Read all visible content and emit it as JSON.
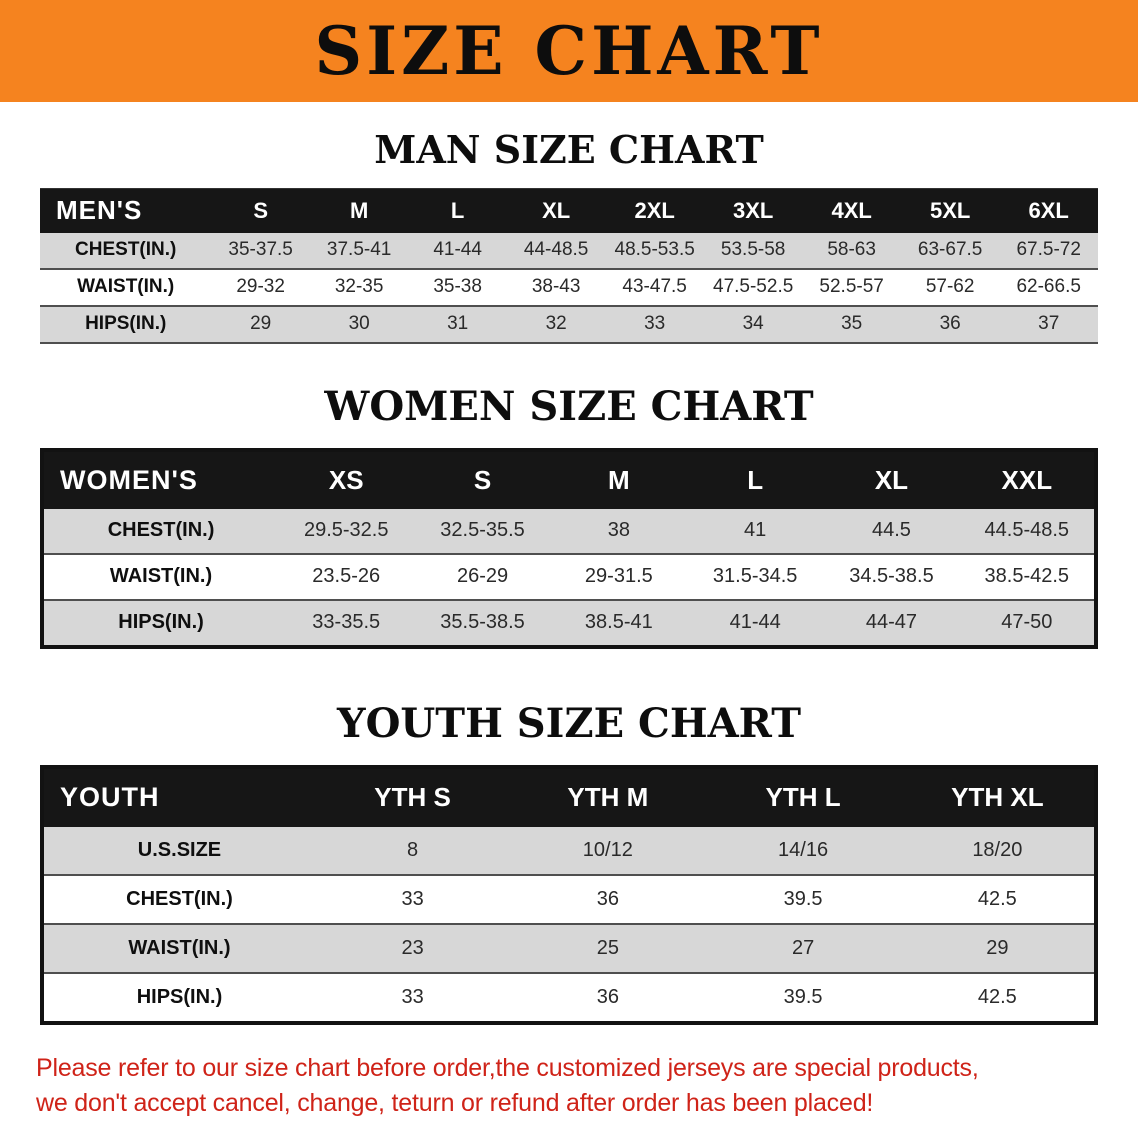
{
  "banner": {
    "title": "SIZE CHART"
  },
  "colors": {
    "banner_orange": "#f5831f",
    "table_header_black": "#161616",
    "stripe_gray": "#d7d7d7",
    "disclaimer_red": "#cf2318"
  },
  "sections": [
    {
      "id": "men",
      "heading": "MAN SIZE CHART",
      "table": {
        "header": [
          "MEN'S",
          "S",
          "M",
          "L",
          "XL",
          "2XL",
          "3XL",
          "4XL",
          "5XL",
          "6XL"
        ],
        "rows": [
          {
            "label": "CHEST(IN.)",
            "values": [
              "35-37.5",
              "37.5-41",
              "41-44",
              "44-48.5",
              "48.5-53.5",
              "53.5-58",
              "58-63",
              "63-67.5",
              "67.5-72"
            ]
          },
          {
            "label": "WAIST(IN.)",
            "values": [
              "29-32",
              "32-35",
              "35-38",
              "38-43",
              "43-47.5",
              "47.5-52.5",
              "52.5-57",
              "57-62",
              "62-66.5"
            ]
          },
          {
            "label": "HIPS(IN.)",
            "values": [
              "29",
              "30",
              "31",
              "32",
              "33",
              "34",
              "35",
              "36",
              "37"
            ]
          }
        ]
      }
    },
    {
      "id": "women",
      "heading": "WOMEN SIZE CHART",
      "table": {
        "header": [
          "WOMEN'S",
          "XS",
          "S",
          "M",
          "L",
          "XL",
          "XXL"
        ],
        "rows": [
          {
            "label": "CHEST(IN.)",
            "values": [
              "29.5-32.5",
              "32.5-35.5",
              "38",
              "41",
              "44.5",
              "44.5-48.5"
            ]
          },
          {
            "label": "WAIST(IN.)",
            "values": [
              "23.5-26",
              "26-29",
              "29-31.5",
              "31.5-34.5",
              "34.5-38.5",
              "38.5-42.5"
            ]
          },
          {
            "label": "HIPS(IN.)",
            "values": [
              "33-35.5",
              "35.5-38.5",
              "38.5-41",
              "41-44",
              "44-47",
              "47-50"
            ]
          }
        ]
      }
    },
    {
      "id": "youth",
      "heading": "YOUTH SIZE CHART",
      "table": {
        "header": [
          "YOUTH",
          "YTH S",
          "YTH M",
          "YTH L",
          "YTH XL"
        ],
        "rows": [
          {
            "label": "U.S.SIZE",
            "values": [
              "8",
              "10/12",
              "14/16",
              "18/20"
            ]
          },
          {
            "label": "CHEST(IN.)",
            "values": [
              "33",
              "36",
              "39.5",
              "42.5"
            ]
          },
          {
            "label": "WAIST(IN.)",
            "values": [
              "23",
              "25",
              "27",
              "29"
            ]
          },
          {
            "label": "HIPS(IN.)",
            "values": [
              "33",
              "36",
              "39.5",
              "42.5"
            ]
          }
        ]
      }
    }
  ],
  "disclaimer": {
    "line1": "Please refer to our size chart before order,the customized jerseys are special products,",
    "line2": "we don't accept cancel, change, teturn or refund after order has been placed!"
  }
}
